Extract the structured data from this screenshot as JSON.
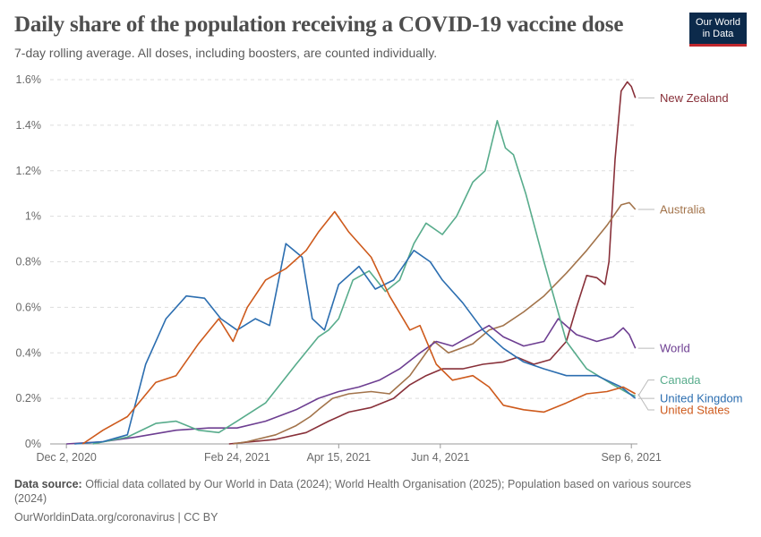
{
  "header": {
    "title": "Daily share of the population receiving a COVID-19 vaccine dose",
    "subtitle": "7-day rolling average. All doses, including boosters, are counted individually.",
    "logo_line1": "Our World",
    "logo_line2": "in Data"
  },
  "footer": {
    "source_label": "Data source:",
    "source_text": "Official data collated by Our World in Data (2024); World Health Organisation (2025); Population based on various sources (2024)",
    "url_text": "OurWorldinData.org/coronavirus | CC BY"
  },
  "chart_data": {
    "type": "line",
    "y_ticks": [
      {
        "value": 0,
        "label": "0%"
      },
      {
        "value": 0.2,
        "label": "0.2%"
      },
      {
        "value": 0.4,
        "label": "0.4%"
      },
      {
        "value": 0.6,
        "label": "0.6%"
      },
      {
        "value": 0.8,
        "label": "0.8%"
      },
      {
        "value": 1.0,
        "label": "1%"
      },
      {
        "value": 1.2,
        "label": "1.2%"
      },
      {
        "value": 1.4,
        "label": "1.4%"
      },
      {
        "value": 1.6,
        "label": "1.6%"
      }
    ],
    "x_ticks": [
      {
        "date": "2020-12-02",
        "label": "Dec 2, 2020"
      },
      {
        "date": "2021-02-24",
        "label": "Feb 24, 2021"
      },
      {
        "date": "2021-04-15",
        "label": "Apr 15, 2021"
      },
      {
        "date": "2021-06-04",
        "label": "Jun 4, 2021"
      },
      {
        "date": "2021-09-06",
        "label": "Sep 6, 2021"
      }
    ],
    "x_range": [
      "2020-11-24",
      "2021-09-09"
    ],
    "y_range": [
      0,
      1.6
    ],
    "grid": "horizontal-dashed",
    "series": [
      {
        "name": "New Zealand",
        "color": "#883039",
        "points": [
          [
            "2021-02-20",
            0
          ],
          [
            "2021-03-15",
            0.02
          ],
          [
            "2021-03-30",
            0.05
          ],
          [
            "2021-04-10",
            0.1
          ],
          [
            "2021-04-20",
            0.14
          ],
          [
            "2021-05-01",
            0.16
          ],
          [
            "2021-05-12",
            0.2
          ],
          [
            "2021-05-20",
            0.26
          ],
          [
            "2021-05-28",
            0.3
          ],
          [
            "2021-06-05",
            0.33
          ],
          [
            "2021-06-15",
            0.33
          ],
          [
            "2021-06-25",
            0.35
          ],
          [
            "2021-07-05",
            0.36
          ],
          [
            "2021-07-12",
            0.38
          ],
          [
            "2021-07-20",
            0.35
          ],
          [
            "2021-07-28",
            0.37
          ],
          [
            "2021-08-05",
            0.45
          ],
          [
            "2021-08-10",
            0.6
          ],
          [
            "2021-08-15",
            0.74
          ],
          [
            "2021-08-20",
            0.73
          ],
          [
            "2021-08-24",
            0.7
          ],
          [
            "2021-08-26",
            0.8
          ],
          [
            "2021-08-29",
            1.25
          ],
          [
            "2021-09-01",
            1.55
          ],
          [
            "2021-09-04",
            1.59
          ],
          [
            "2021-09-06",
            1.57
          ],
          [
            "2021-09-08",
            1.52
          ]
        ]
      },
      {
        "name": "Australia",
        "color": "#a2734a",
        "points": [
          [
            "2021-02-22",
            0
          ],
          [
            "2021-03-01",
            0.01
          ],
          [
            "2021-03-15",
            0.04
          ],
          [
            "2021-03-25",
            0.08
          ],
          [
            "2021-04-01",
            0.12
          ],
          [
            "2021-04-05",
            0.15
          ],
          [
            "2021-04-12",
            0.2
          ],
          [
            "2021-04-20",
            0.22
          ],
          [
            "2021-05-01",
            0.23
          ],
          [
            "2021-05-10",
            0.22
          ],
          [
            "2021-05-20",
            0.3
          ],
          [
            "2021-06-01",
            0.45
          ],
          [
            "2021-06-08",
            0.4
          ],
          [
            "2021-06-14",
            0.42
          ],
          [
            "2021-06-20",
            0.44
          ],
          [
            "2021-06-28",
            0.5
          ],
          [
            "2021-07-05",
            0.52
          ],
          [
            "2021-07-15",
            0.58
          ],
          [
            "2021-07-25",
            0.65
          ],
          [
            "2021-08-05",
            0.75
          ],
          [
            "2021-08-15",
            0.85
          ],
          [
            "2021-08-25",
            0.96
          ],
          [
            "2021-09-01",
            1.05
          ],
          [
            "2021-09-05",
            1.06
          ],
          [
            "2021-09-08",
            1.03
          ]
        ]
      },
      {
        "name": "World",
        "color": "#6d3e91",
        "points": [
          [
            "2020-12-02",
            0
          ],
          [
            "2020-12-20",
            0.01
          ],
          [
            "2021-01-05",
            0.03
          ],
          [
            "2021-01-25",
            0.06
          ],
          [
            "2021-02-10",
            0.07
          ],
          [
            "2021-02-24",
            0.07
          ],
          [
            "2021-03-10",
            0.1
          ],
          [
            "2021-03-25",
            0.15
          ],
          [
            "2021-04-05",
            0.2
          ],
          [
            "2021-04-15",
            0.23
          ],
          [
            "2021-04-25",
            0.25
          ],
          [
            "2021-05-05",
            0.28
          ],
          [
            "2021-05-15",
            0.33
          ],
          [
            "2021-05-25",
            0.4
          ],
          [
            "2021-06-02",
            0.45
          ],
          [
            "2021-06-10",
            0.43
          ],
          [
            "2021-06-20",
            0.48
          ],
          [
            "2021-06-28",
            0.52
          ],
          [
            "2021-07-05",
            0.47
          ],
          [
            "2021-07-15",
            0.43
          ],
          [
            "2021-07-25",
            0.45
          ],
          [
            "2021-08-01",
            0.55
          ],
          [
            "2021-08-10",
            0.48
          ],
          [
            "2021-08-20",
            0.45
          ],
          [
            "2021-08-28",
            0.47
          ],
          [
            "2021-09-02",
            0.51
          ],
          [
            "2021-09-05",
            0.48
          ],
          [
            "2021-09-08",
            0.42
          ]
        ]
      },
      {
        "name": "Canada",
        "color": "#58ac8c",
        "points": [
          [
            "2020-12-15",
            0
          ],
          [
            "2021-01-01",
            0.03
          ],
          [
            "2021-01-15",
            0.09
          ],
          [
            "2021-01-25",
            0.1
          ],
          [
            "2021-02-05",
            0.06
          ],
          [
            "2021-02-15",
            0.05
          ],
          [
            "2021-02-24",
            0.1
          ],
          [
            "2021-03-10",
            0.18
          ],
          [
            "2021-03-25",
            0.35
          ],
          [
            "2021-04-05",
            0.47
          ],
          [
            "2021-04-10",
            0.5
          ],
          [
            "2021-04-15",
            0.55
          ],
          [
            "2021-04-22",
            0.72
          ],
          [
            "2021-04-30",
            0.76
          ],
          [
            "2021-05-08",
            0.67
          ],
          [
            "2021-05-15",
            0.72
          ],
          [
            "2021-05-22",
            0.88
          ],
          [
            "2021-05-28",
            0.97
          ],
          [
            "2021-06-05",
            0.92
          ],
          [
            "2021-06-12",
            1.0
          ],
          [
            "2021-06-20",
            1.15
          ],
          [
            "2021-06-26",
            1.2
          ],
          [
            "2021-07-02",
            1.42
          ],
          [
            "2021-07-06",
            1.3
          ],
          [
            "2021-07-10",
            1.27
          ],
          [
            "2021-07-16",
            1.1
          ],
          [
            "2021-07-25",
            0.8
          ],
          [
            "2021-08-05",
            0.45
          ],
          [
            "2021-08-15",
            0.33
          ],
          [
            "2021-08-28",
            0.26
          ],
          [
            "2021-09-05",
            0.22
          ],
          [
            "2021-09-08",
            0.21
          ]
        ]
      },
      {
        "name": "United Kingdom",
        "color": "#2c6eb0",
        "points": [
          [
            "2020-12-06",
            0
          ],
          [
            "2020-12-20",
            0.01
          ],
          [
            "2021-01-01",
            0.04
          ],
          [
            "2021-01-10",
            0.35
          ],
          [
            "2021-01-20",
            0.55
          ],
          [
            "2021-01-30",
            0.65
          ],
          [
            "2021-02-08",
            0.64
          ],
          [
            "2021-02-16",
            0.55
          ],
          [
            "2021-02-24",
            0.5
          ],
          [
            "2021-03-05",
            0.55
          ],
          [
            "2021-03-12",
            0.52
          ],
          [
            "2021-03-20",
            0.88
          ],
          [
            "2021-03-28",
            0.82
          ],
          [
            "2021-04-02",
            0.55
          ],
          [
            "2021-04-08",
            0.5
          ],
          [
            "2021-04-15",
            0.7
          ],
          [
            "2021-04-25",
            0.78
          ],
          [
            "2021-05-03",
            0.68
          ],
          [
            "2021-05-12",
            0.72
          ],
          [
            "2021-05-22",
            0.85
          ],
          [
            "2021-05-30",
            0.8
          ],
          [
            "2021-06-05",
            0.72
          ],
          [
            "2021-06-15",
            0.62
          ],
          [
            "2021-06-25",
            0.5
          ],
          [
            "2021-07-05",
            0.42
          ],
          [
            "2021-07-15",
            0.36
          ],
          [
            "2021-07-25",
            0.33
          ],
          [
            "2021-08-05",
            0.3
          ],
          [
            "2021-08-20",
            0.3
          ],
          [
            "2021-09-01",
            0.25
          ],
          [
            "2021-09-08",
            0.2
          ]
        ]
      },
      {
        "name": "United States",
        "color": "#ce5a1c",
        "points": [
          [
            "2020-12-10",
            0
          ],
          [
            "2020-12-20",
            0.06
          ],
          [
            "2021-01-01",
            0.12
          ],
          [
            "2021-01-15",
            0.27
          ],
          [
            "2021-01-25",
            0.3
          ],
          [
            "2021-02-05",
            0.44
          ],
          [
            "2021-02-15",
            0.55
          ],
          [
            "2021-02-22",
            0.45
          ],
          [
            "2021-03-01",
            0.6
          ],
          [
            "2021-03-10",
            0.72
          ],
          [
            "2021-03-20",
            0.77
          ],
          [
            "2021-03-30",
            0.85
          ],
          [
            "2021-04-05",
            0.93
          ],
          [
            "2021-04-13",
            1.02
          ],
          [
            "2021-04-20",
            0.93
          ],
          [
            "2021-05-01",
            0.82
          ],
          [
            "2021-05-10",
            0.65
          ],
          [
            "2021-05-20",
            0.5
          ],
          [
            "2021-05-25",
            0.52
          ],
          [
            "2021-06-02",
            0.35
          ],
          [
            "2021-06-10",
            0.28
          ],
          [
            "2021-06-20",
            0.3
          ],
          [
            "2021-06-28",
            0.25
          ],
          [
            "2021-07-05",
            0.17
          ],
          [
            "2021-07-15",
            0.15
          ],
          [
            "2021-07-25",
            0.14
          ],
          [
            "2021-08-05",
            0.18
          ],
          [
            "2021-08-15",
            0.22
          ],
          [
            "2021-08-25",
            0.23
          ],
          [
            "2021-09-02",
            0.25
          ],
          [
            "2021-09-08",
            0.22
          ]
        ]
      }
    ]
  }
}
